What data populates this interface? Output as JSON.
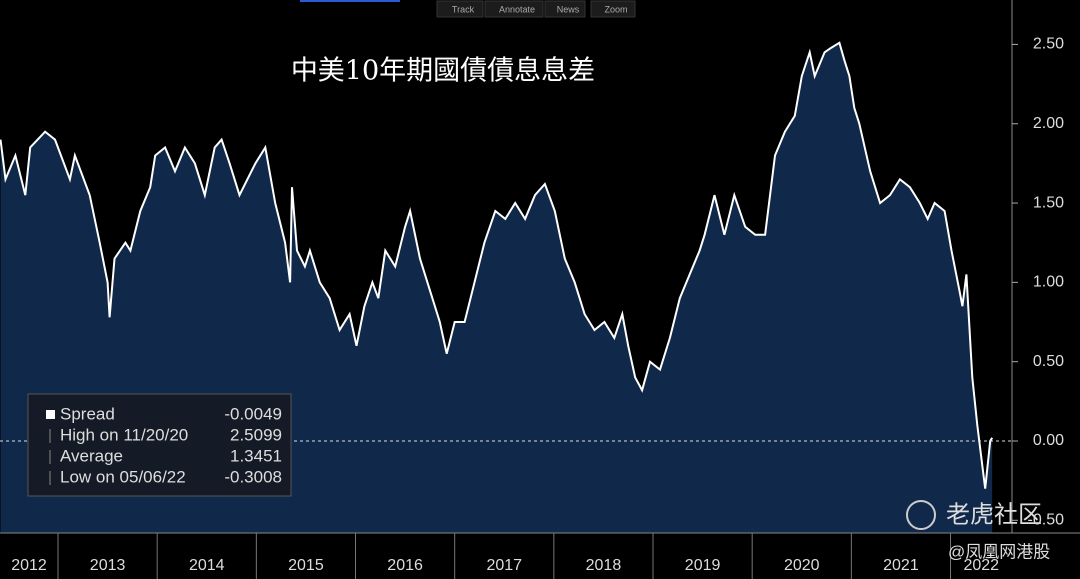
{
  "toolbar": [
    "Track",
    "Annotate",
    "News",
    "Zoom"
  ],
  "chart_data": {
    "type": "area",
    "title": "中美10年期國債債息息差",
    "series": [
      {
        "name": "Spread",
        "color": "#ffffff",
        "fill": "#10294a",
        "x": [
          2012.42,
          2012.47,
          2012.57,
          2012.67,
          2012.72,
          2012.87,
          2012.97,
          2013.12,
          2013.17,
          2013.32,
          2013.42,
          2013.5,
          2013.52,
          2013.57,
          2013.68,
          2013.73,
          2013.83,
          2013.93,
          2013.98,
          2014.08,
          2014.18,
          2014.28,
          2014.38,
          2014.48,
          2014.58,
          2014.65,
          2014.73,
          2014.83,
          2014.99,
          2015.09,
          2015.19,
          2015.29,
          2015.34,
          2015.36,
          2015.41,
          2015.49,
          2015.54,
          2015.64,
          2015.74,
          2015.84,
          2015.94,
          2016.01,
          2016.09,
          2016.17,
          2016.23,
          2016.3,
          2016.4,
          2016.5,
          2016.55,
          2016.65,
          2016.75,
          2016.85,
          2016.92,
          2017.0,
          2017.1,
          2017.2,
          2017.3,
          2017.41,
          2017.51,
          2017.61,
          2017.71,
          2017.81,
          2017.91,
          2018.01,
          2018.11,
          2018.21,
          2018.31,
          2018.41,
          2018.51,
          2018.61,
          2018.69,
          2018.75,
          2018.82,
          2018.89,
          2018.97,
          2019.07,
          2019.17,
          2019.27,
          2019.37,
          2019.47,
          2019.52,
          2019.62,
          2019.72,
          2019.82,
          2019.93,
          2020.03,
          2020.13,
          2020.23,
          2020.33,
          2020.43,
          2020.5,
          2020.58,
          2020.63,
          2020.73,
          2020.8,
          2020.88,
          2020.93,
          2020.98,
          2021.03,
          2021.08,
          2021.19,
          2021.29,
          2021.39,
          2021.49,
          2021.59,
          2021.69,
          2021.77,
          2021.84,
          2021.94,
          2022.01,
          2022.09,
          2022.12,
          2022.16,
          2022.22,
          2022.27,
          2022.33,
          2022.35,
          2022.4,
          2022.42
        ],
        "values": [
          1.9,
          1.65,
          1.8,
          1.55,
          1.85,
          1.95,
          1.9,
          1.65,
          1.8,
          1.55,
          1.25,
          1.0,
          0.78,
          1.15,
          1.25,
          1.2,
          1.45,
          1.6,
          1.8,
          1.85,
          1.7,
          1.85,
          1.75,
          1.55,
          1.85,
          1.9,
          1.75,
          1.55,
          1.75,
          1.85,
          1.5,
          1.25,
          1.0,
          1.6,
          1.2,
          1.1,
          1.2,
          1.0,
          0.9,
          0.7,
          0.8,
          0.6,
          0.85,
          1.0,
          0.9,
          1.2,
          1.1,
          1.35,
          1.45,
          1.15,
          0.95,
          0.75,
          0.55,
          0.75,
          0.75,
          1.0,
          1.25,
          1.45,
          1.4,
          1.5,
          1.4,
          1.55,
          1.62,
          1.45,
          1.15,
          1.0,
          0.8,
          0.7,
          0.75,
          0.65,
          0.8,
          0.6,
          0.4,
          0.32,
          0.5,
          0.45,
          0.65,
          0.9,
          1.05,
          1.2,
          1.3,
          1.55,
          1.3,
          1.55,
          1.35,
          1.3,
          1.3,
          1.8,
          1.95,
          2.05,
          2.3,
          2.45,
          2.3,
          2.45,
          2.48,
          2.51,
          2.4,
          2.3,
          2.1,
          2.0,
          1.7,
          1.5,
          1.55,
          1.65,
          1.6,
          1.5,
          1.4,
          1.5,
          1.45,
          1.2,
          0.95,
          0.85,
          1.05,
          0.4,
          0.1,
          -0.2,
          -0.3,
          0.0,
          0.02
        ]
      }
    ],
    "legend": [
      {
        "label": "Spread",
        "value": -0.0049
      },
      {
        "label": "High on 11/20/20",
        "value": 2.5099
      },
      {
        "label": "Average",
        "value": 1.3451
      },
      {
        "label": "Low on 05/06/22",
        "value": -0.3008
      }
    ],
    "xlim": [
      2012.415,
      2022.62
    ],
    "xticks": [
      2012,
      2013,
      2014,
      2015,
      2016,
      2017,
      2018,
      2019,
      2020,
      2021,
      2022
    ],
    "ylim": [
      -0.58,
      2.78
    ],
    "yticks": [
      {
        "value": -0.5,
        "label": "-0.50"
      },
      {
        "value": 0,
        "label": "0.00"
      },
      {
        "value": 0.5,
        "label": "0.50"
      },
      {
        "value": 1,
        "label": "1.00"
      },
      {
        "value": 1.5,
        "label": "1.50"
      },
      {
        "value": 2,
        "label": "2.00"
      },
      {
        "value": 2.5,
        "label": "2.50"
      }
    ]
  },
  "watermark": {
    "brand": "老虎社区",
    "credit": "@凤凰网港股"
  }
}
